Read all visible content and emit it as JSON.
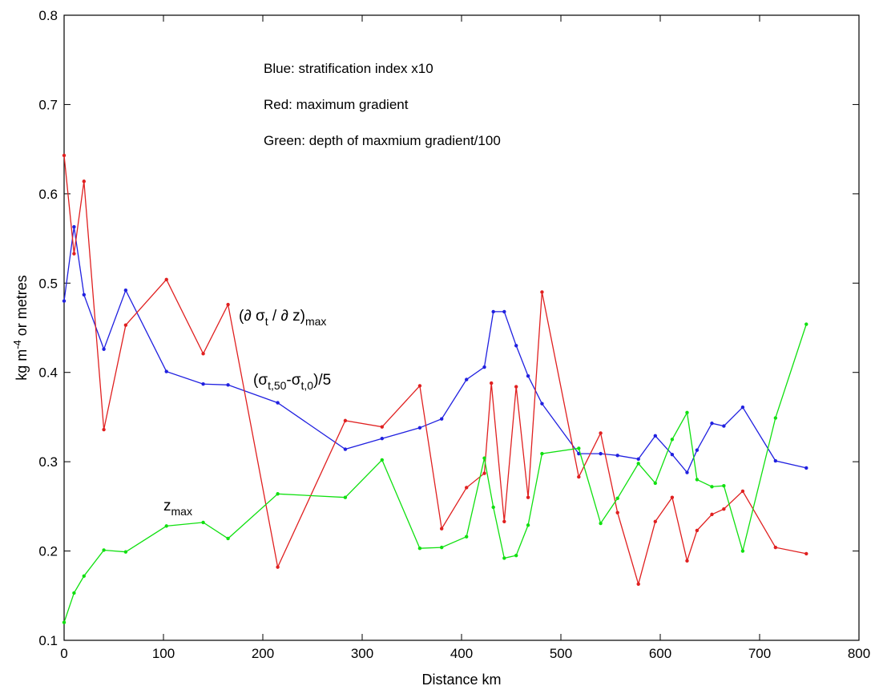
{
  "chart_data": {
    "type": "line",
    "xlabel": "Distance km",
    "ylabel": "kg m-4 or metres",
    "ylabel_parts": {
      "pre": "kg m",
      "sup": "-4",
      "post": " or metres"
    },
    "xlim": [
      0,
      800
    ],
    "ylim": [
      0.1,
      0.8
    ],
    "xticks": [
      "0",
      "100",
      "200",
      "300",
      "400",
      "500",
      "600",
      "700",
      "800"
    ],
    "yticks": [
      "0.1",
      "0.2",
      "0.3",
      "0.4",
      "0.5",
      "0.6",
      "0.7",
      "0.8"
    ],
    "grid": false,
    "annotations": [
      "Blue: stratification index x10",
      "Red: maximum gradient",
      "Green: depth of maxmium gradient/100"
    ],
    "curve_labels": {
      "red": {
        "main": "(∂ σ",
        "sub1": "t",
        "mid": " / ∂ z)",
        "sub2": "max"
      },
      "blue": {
        "main": "(σ",
        "sub1": "t,50",
        "mid": "-σ",
        "sub2": "t,0",
        "end": ")/5"
      },
      "green": {
        "main": "z",
        "sub1": "max"
      }
    },
    "series": [
      {
        "color": "#2020e0",
        "x": [
          0,
          10,
          20,
          40,
          62,
          103,
          140,
          165,
          215,
          283,
          320,
          358,
          380,
          405,
          423,
          432,
          443,
          455,
          467,
          481,
          518,
          540,
          557,
          578,
          595,
          612,
          627,
          637,
          652,
          664,
          683,
          716,
          747
        ],
        "y": [
          0.48,
          0.563,
          0.487,
          0.426,
          0.492,
          0.401,
          0.387,
          0.386,
          0.366,
          0.314,
          0.326,
          0.338,
          0.348,
          0.392,
          0.406,
          0.468,
          0.468,
          0.43,
          0.396,
          0.365,
          0.309,
          0.309,
          0.307,
          0.303,
          0.329,
          0.308,
          0.288,
          0.313,
          0.343,
          0.34,
          0.361,
          0.301,
          0.293
        ]
      },
      {
        "color": "#e02020",
        "x": [
          0,
          10,
          20,
          40,
          62,
          103,
          140,
          165,
          215,
          283,
          320,
          358,
          380,
          405,
          423,
          430,
          443,
          455,
          467,
          481,
          518,
          540,
          557,
          578,
          595,
          612,
          627,
          637,
          652,
          664,
          683,
          716,
          747
        ],
        "y": [
          0.643,
          0.533,
          0.614,
          0.336,
          0.453,
          0.504,
          0.421,
          0.476,
          0.182,
          0.346,
          0.339,
          0.385,
          0.225,
          0.271,
          0.287,
          0.388,
          0.233,
          0.384,
          0.26,
          0.49,
          0.283,
          0.332,
          0.243,
          0.163,
          0.233,
          0.26,
          0.189,
          0.223,
          0.241,
          0.247,
          0.267,
          0.204,
          0.197
        ]
      },
      {
        "color": "#10e010",
        "x": [
          0,
          10,
          20,
          40,
          62,
          103,
          140,
          165,
          215,
          283,
          320,
          358,
          380,
          405,
          423,
          432,
          443,
          455,
          467,
          481,
          518,
          540,
          557,
          578,
          595,
          612,
          627,
          637,
          652,
          664,
          683,
          716,
          747
        ],
        "y": [
          0.12,
          0.153,
          0.172,
          0.201,
          0.199,
          0.228,
          0.232,
          0.214,
          0.264,
          0.26,
          0.302,
          0.203,
          0.204,
          0.216,
          0.304,
          0.249,
          0.192,
          0.195,
          0.229,
          0.309,
          0.315,
          0.231,
          0.259,
          0.298,
          0.276,
          0.325,
          0.355,
          0.28,
          0.272,
          0.273,
          0.2,
          0.349,
          0.454
        ]
      }
    ]
  }
}
